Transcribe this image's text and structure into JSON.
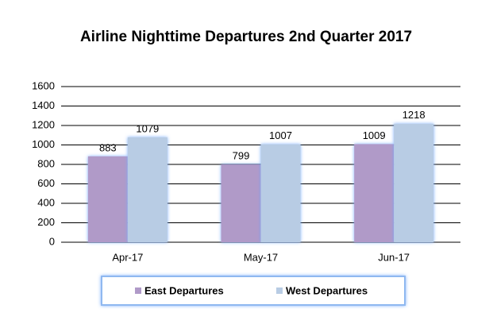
{
  "chart_data": {
    "type": "bar",
    "title": "Airline Nighttime Departures 2nd Quarter 2017",
    "categories": [
      "Apr-17",
      "May-17",
      "Jun-17"
    ],
    "series": [
      {
        "name": "East Departures",
        "color": "#b09ac8",
        "values": [
          883,
          799,
          1009
        ]
      },
      {
        "name": "West Departures",
        "color": "#b8cce4",
        "values": [
          1079,
          1007,
          1218
        ]
      }
    ],
    "ylim": [
      0,
      1600
    ],
    "yticks": [
      0,
      200,
      400,
      600,
      800,
      1000,
      1200,
      1400,
      1600
    ],
    "grid": true,
    "legend": "bottom"
  }
}
